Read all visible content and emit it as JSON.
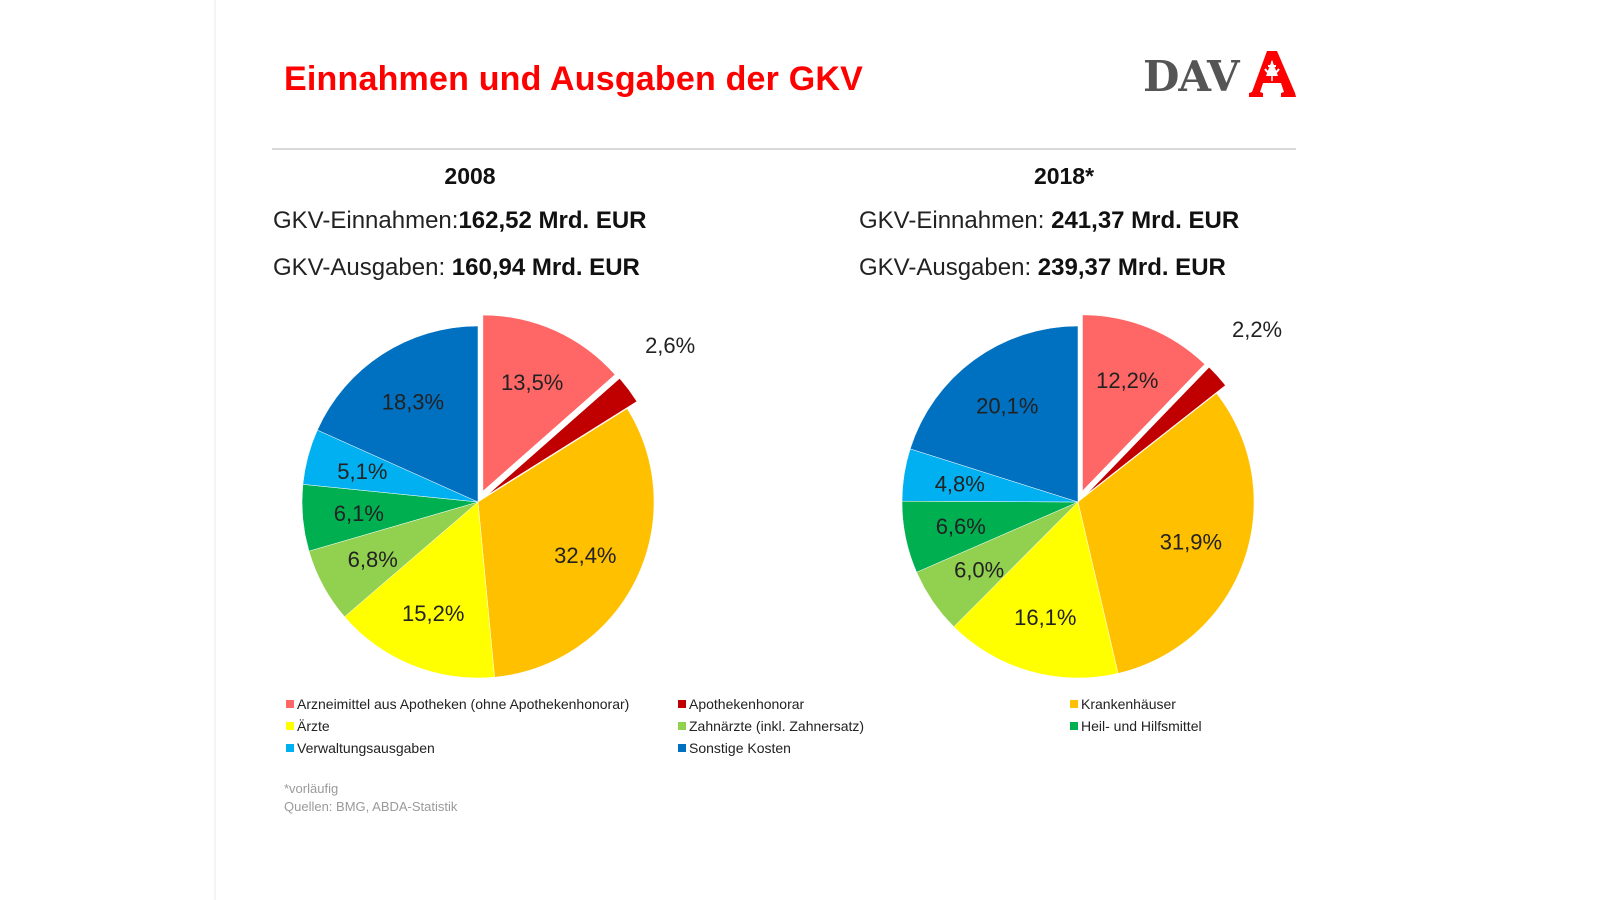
{
  "title": "Einnahmen und Ausgaben der GKV",
  "logo": {
    "text": "DAV",
    "icon": "apotheke-a-icon",
    "text_color": "#555555",
    "icon_color": "#ff0000"
  },
  "charts_header": [
    {
      "year": "2008",
      "income_label": "GKV-Einnahmen:",
      "income_value": "162,52 Mrd. EUR",
      "expense_label": "GKV-Ausgaben: ",
      "expense_value": "160,94 Mrd. EUR"
    },
    {
      "year": "2018*",
      "income_label": "GKV-Einnahmen: ",
      "income_value": "241,37 Mrd. EUR",
      "expense_label": "GKV-Ausgaben: ",
      "expense_value": "239,37 Mrd. EUR"
    }
  ],
  "legend": [
    {
      "label": "Arzneimittel aus Apotheken (ohne Apothekenhonorar)",
      "color": "#ff6666"
    },
    {
      "label": "Apothekenhonorar",
      "color": "#c00000"
    },
    {
      "label": "Krankenhäuser",
      "color": "#ffc000"
    },
    {
      "label": "Ärzte",
      "color": "#ffff00"
    },
    {
      "label": "Zahnärzte (inkl. Zahnersatz)",
      "color": "#92d050"
    },
    {
      "label": "Heil- und Hilfsmittel",
      "color": "#00b050"
    },
    {
      "label": "Verwaltungsausgaben",
      "color": "#00b0f0"
    },
    {
      "label": "Sonstige Kosten",
      "color": "#0070c0"
    }
  ],
  "footnotes": [
    "*vorläufig",
    "Quellen: BMG, ABDA-Statistik"
  ],
  "chart_data": [
    {
      "type": "pie",
      "title": "2008",
      "categories": [
        "Arzneimittel aus Apotheken (ohne Apothekenhonorar)",
        "Apothekenhonorar",
        "Krankenhäuser",
        "Ärzte",
        "Zahnärzte (inkl. Zahnersatz)",
        "Heil- und Hilfsmittel",
        "Verwaltungsausgaben",
        "Sonstige Kosten"
      ],
      "values": [
        13.5,
        2.6,
        32.4,
        15.2,
        6.8,
        6.1,
        5.1,
        18.3
      ],
      "labels": [
        "13,5%",
        "2,6%",
        "32,4%",
        "15,2%",
        "6,8%",
        "6,1%",
        "5,1%",
        "18,3%"
      ],
      "exploded": [
        true,
        true,
        false,
        false,
        false,
        false,
        false,
        false
      ],
      "start_angle": "12 o'clock, clockwise",
      "legend_position": "bottom"
    },
    {
      "type": "pie",
      "title": "2018*",
      "categories": [
        "Arzneimittel aus Apotheken (ohne Apothekenhonorar)",
        "Apothekenhonorar",
        "Krankenhäuser",
        "Ärzte",
        "Zahnärzte (inkl. Zahnersatz)",
        "Heil- und Hilfsmittel",
        "Verwaltungsausgaben",
        "Sonstige Kosten"
      ],
      "values": [
        12.2,
        2.2,
        31.9,
        16.1,
        6.0,
        6.6,
        4.8,
        20.1
      ],
      "labels": [
        "12,2%",
        "2,2%",
        "31,9%",
        "16,1%",
        "6,0%",
        "6,6%",
        "4,8%",
        "20,1%"
      ],
      "exploded": [
        true,
        true,
        false,
        false,
        false,
        false,
        false,
        false
      ],
      "start_angle": "12 o'clock, clockwise",
      "legend_position": "bottom"
    }
  ]
}
